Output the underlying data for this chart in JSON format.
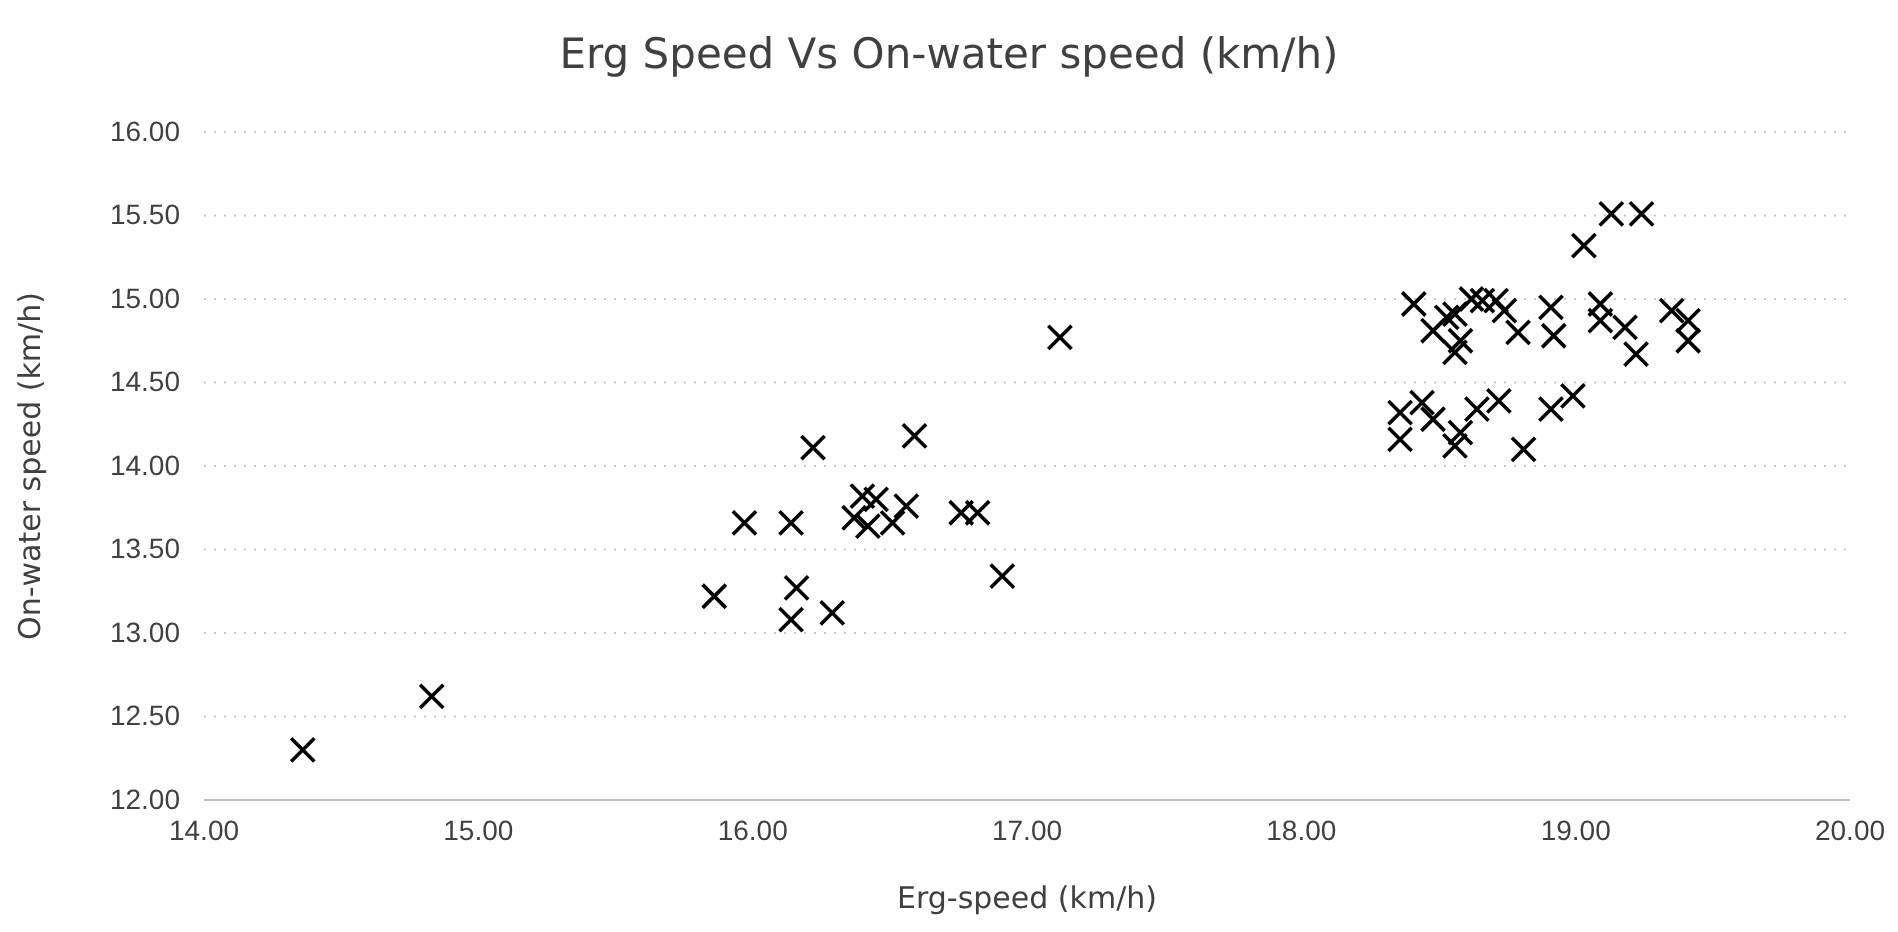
{
  "chart_data": {
    "type": "scatter",
    "title": "Erg Speed Vs On-water speed (km/h)",
    "xlabel": "Erg-speed (km/h)",
    "ylabel": "On-water speed (km/h)",
    "xlim": [
      14,
      20
    ],
    "xticks": [
      {
        "value": 14,
        "label": "14.00"
      },
      {
        "value": 15,
        "label": "15.00"
      },
      {
        "value": 16,
        "label": "16.00"
      },
      {
        "value": 17,
        "label": "17.00"
      },
      {
        "value": 18,
        "label": "18.00"
      },
      {
        "value": 19,
        "label": "19.00"
      },
      {
        "value": 20,
        "label": "20.00"
      }
    ],
    "ylim": [
      12,
      16
    ],
    "yticks": [
      {
        "value": 12,
        "label": "12.00"
      },
      {
        "value": 12.5,
        "label": "12.50"
      },
      {
        "value": 13,
        "label": "13.00"
      },
      {
        "value": 13.5,
        "label": "13.50"
      },
      {
        "value": 14,
        "label": "14.00"
      },
      {
        "value": 14.5,
        "label": "14.50"
      },
      {
        "value": 15,
        "label": "15.00"
      },
      {
        "value": 15.5,
        "label": "15.50"
      },
      {
        "value": 16,
        "label": "16.00"
      }
    ],
    "grid": "y",
    "marker": "cross",
    "series": [
      {
        "color": "#000000",
        "x": [
          14.36,
          14.83,
          17.12,
          16.22,
          16.59,
          15.97,
          16.14,
          16.4,
          16.45,
          16.37,
          16.42,
          16.51,
          16.56,
          16.76,
          16.82,
          16.91,
          15.86,
          16.16,
          16.14,
          16.29,
          19.13,
          19.24,
          19.03,
          18.41,
          18.48,
          18.53,
          18.56,
          18.58,
          18.56,
          18.62,
          18.66,
          18.71,
          18.74,
          18.79,
          18.91,
          18.92,
          19.09,
          19.09,
          19.18,
          19.22,
          19.35,
          19.41,
          19.41,
          18.36,
          18.36,
          18.44,
          18.48,
          18.56,
          18.58,
          18.64,
          18.72,
          18.81,
          18.91,
          18.99
        ],
        "values": [
          12.3,
          12.62,
          14.77,
          14.11,
          14.18,
          13.66,
          13.66,
          13.82,
          13.8,
          13.69,
          13.64,
          13.66,
          13.76,
          13.72,
          13.72,
          13.34,
          13.22,
          13.27,
          13.08,
          13.12,
          15.51,
          15.51,
          15.32,
          14.97,
          14.81,
          14.89,
          14.91,
          14.75,
          14.68,
          15.0,
          14.99,
          14.99,
          14.93,
          14.8,
          14.95,
          14.78,
          14.97,
          14.87,
          14.83,
          14.67,
          14.93,
          14.87,
          14.75,
          14.32,
          14.16,
          14.38,
          14.28,
          14.12,
          14.2,
          14.34,
          14.39,
          14.1,
          14.34,
          14.42
        ]
      }
    ]
  }
}
